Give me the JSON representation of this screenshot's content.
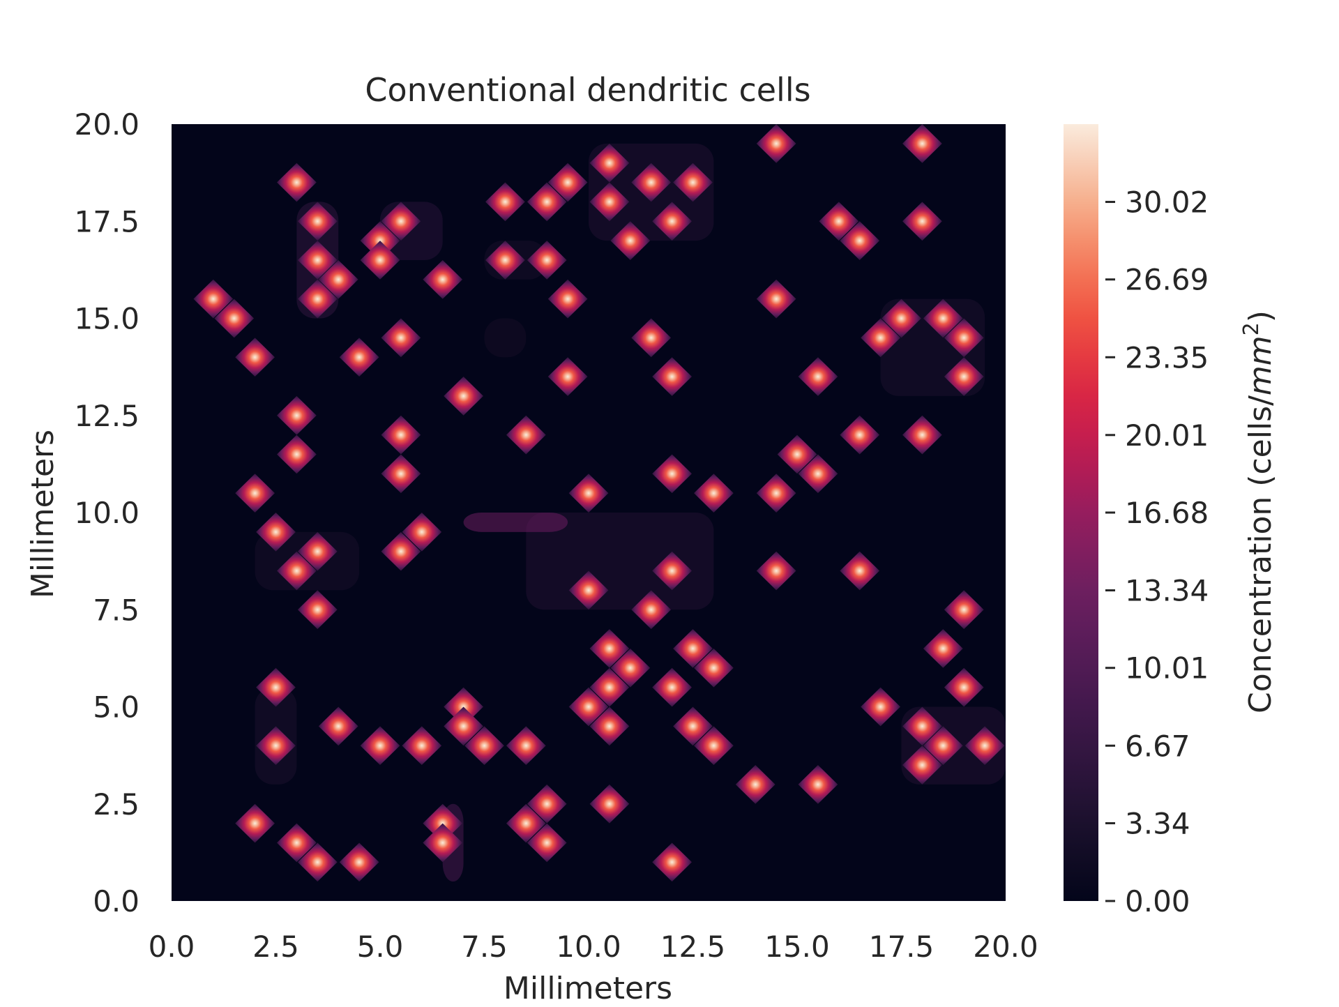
{
  "chart_data": {
    "type": "heatmap",
    "title": "Conventional dendritic cells",
    "xlabel": "Millimeters",
    "ylabel": "Millimeters",
    "xlim": [
      0,
      20
    ],
    "ylim": [
      0,
      20
    ],
    "x_ticks": [
      "0.0",
      "2.5",
      "5.0",
      "7.5",
      "10.0",
      "12.5",
      "15.0",
      "17.5",
      "20.0"
    ],
    "y_ticks": [
      "0.0",
      "2.5",
      "5.0",
      "7.5",
      "10.0",
      "12.5",
      "15.0",
      "17.5",
      "20.0"
    ],
    "grid": false,
    "colormap": "rocket",
    "colorbar": {
      "label_text": "Concentration (cells/",
      "label_italic": "mm",
      "label_sup": "2",
      "label_close": ")",
      "range": [
        0,
        33.36
      ],
      "ticks": [
        "0.00",
        "3.34",
        "6.67",
        "10.01",
        "13.34",
        "16.68",
        "20.01",
        "23.35",
        "26.69",
        "30.02"
      ]
    },
    "peak_value": 33.36,
    "hotspots": [
      [
        3.0,
        18.5
      ],
      [
        3.5,
        17.5
      ],
      [
        3.5,
        16.5
      ],
      [
        4.0,
        16.0
      ],
      [
        3.5,
        15.5
      ],
      [
        1.0,
        15.5
      ],
      [
        1.5,
        15.0
      ],
      [
        2.0,
        14.0
      ],
      [
        5.0,
        17.0
      ],
      [
        5.0,
        16.5
      ],
      [
        5.5,
        17.5
      ],
      [
        6.5,
        16.0
      ],
      [
        4.5,
        14.0
      ],
      [
        5.5,
        14.5
      ],
      [
        8.0,
        18.0
      ],
      [
        8.0,
        16.5
      ],
      [
        9.0,
        18.0
      ],
      [
        9.5,
        18.5
      ],
      [
        9.0,
        16.5
      ],
      [
        10.5,
        19.0
      ],
      [
        10.5,
        18.0
      ],
      [
        11.5,
        18.5
      ],
      [
        12.0,
        17.5
      ],
      [
        12.5,
        18.5
      ],
      [
        11.0,
        17.0
      ],
      [
        14.5,
        19.5
      ],
      [
        18.0,
        19.5
      ],
      [
        16.0,
        17.5
      ],
      [
        16.5,
        17.0
      ],
      [
        18.0,
        17.5
      ],
      [
        9.5,
        15.5
      ],
      [
        14.5,
        15.5
      ],
      [
        11.5,
        14.5
      ],
      [
        9.5,
        13.5
      ],
      [
        12.0,
        13.5
      ],
      [
        15.5,
        13.5
      ],
      [
        7.0,
        13.0
      ],
      [
        17.0,
        14.5
      ],
      [
        17.5,
        15.0
      ],
      [
        18.5,
        15.0
      ],
      [
        19.0,
        14.5
      ],
      [
        19.0,
        13.5
      ],
      [
        3.0,
        12.5
      ],
      [
        3.0,
        11.5
      ],
      [
        5.5,
        12.0
      ],
      [
        5.5,
        11.0
      ],
      [
        8.5,
        12.0
      ],
      [
        16.5,
        12.0
      ],
      [
        18.0,
        12.0
      ],
      [
        15.0,
        11.5
      ],
      [
        15.5,
        11.0
      ],
      [
        12.0,
        11.0
      ],
      [
        2.0,
        10.5
      ],
      [
        10.0,
        10.5
      ],
      [
        13.0,
        10.5
      ],
      [
        14.5,
        10.5
      ],
      [
        2.5,
        9.5
      ],
      [
        6.0,
        9.5
      ],
      [
        5.5,
        9.0
      ],
      [
        3.5,
        9.0
      ],
      [
        3.0,
        8.5
      ],
      [
        10.0,
        8.0
      ],
      [
        12.0,
        8.5
      ],
      [
        14.5,
        8.5
      ],
      [
        16.5,
        8.5
      ],
      [
        3.5,
        7.5
      ],
      [
        11.5,
        7.5
      ],
      [
        19.0,
        7.5
      ],
      [
        10.5,
        6.5
      ],
      [
        11.0,
        6.0
      ],
      [
        12.5,
        6.5
      ],
      [
        13.0,
        6.0
      ],
      [
        18.5,
        6.5
      ],
      [
        2.5,
        5.5
      ],
      [
        7.0,
        5.0
      ],
      [
        10.5,
        5.5
      ],
      [
        10.0,
        5.0
      ],
      [
        12.0,
        5.5
      ],
      [
        17.0,
        5.0
      ],
      [
        19.0,
        5.5
      ],
      [
        4.0,
        4.5
      ],
      [
        7.0,
        4.5
      ],
      [
        10.5,
        4.5
      ],
      [
        12.5,
        4.5
      ],
      [
        18.0,
        4.5
      ],
      [
        2.5,
        4.0
      ],
      [
        5.0,
        4.0
      ],
      [
        6.0,
        4.0
      ],
      [
        7.5,
        4.0
      ],
      [
        8.5,
        4.0
      ],
      [
        13.0,
        4.0
      ],
      [
        18.5,
        4.0
      ],
      [
        19.5,
        4.0
      ],
      [
        18.0,
        3.5
      ],
      [
        14.0,
        3.0
      ],
      [
        15.5,
        3.0
      ],
      [
        9.0,
        2.5
      ],
      [
        10.5,
        2.5
      ],
      [
        2.0,
        2.0
      ],
      [
        6.5,
        2.0
      ],
      [
        8.5,
        2.0
      ],
      [
        6.5,
        1.5
      ],
      [
        3.0,
        1.5
      ],
      [
        9.0,
        1.5
      ],
      [
        3.5,
        1.0
      ],
      [
        4.5,
        1.0
      ],
      [
        12.0,
        1.0
      ]
    ],
    "diffuse_regions": [
      [
        8.5,
        10.0,
        13.0,
        7.5,
        4.0
      ],
      [
        2.0,
        9.5,
        4.5,
        8.0,
        3.0
      ],
      [
        2.0,
        5.5,
        3.0,
        3.0,
        3.5
      ],
      [
        6.5,
        2.5,
        7.0,
        0.5,
        9.0
      ],
      [
        7.0,
        10.0,
        9.5,
        9.5,
        13.0
      ],
      [
        3.0,
        18.0,
        4.0,
        15.0,
        6.0
      ],
      [
        5.0,
        18.0,
        6.5,
        16.5,
        5.0
      ],
      [
        7.5,
        17.0,
        9.0,
        16.0,
        3.0
      ],
      [
        7.5,
        15.0,
        8.5,
        14.0,
        2.5
      ],
      [
        17.0,
        15.5,
        19.5,
        13.0,
        3.5
      ],
      [
        17.5,
        5.0,
        20.0,
        3.0,
        4.0
      ],
      [
        10.0,
        19.5,
        13.0,
        17.0,
        4.0
      ]
    ]
  }
}
